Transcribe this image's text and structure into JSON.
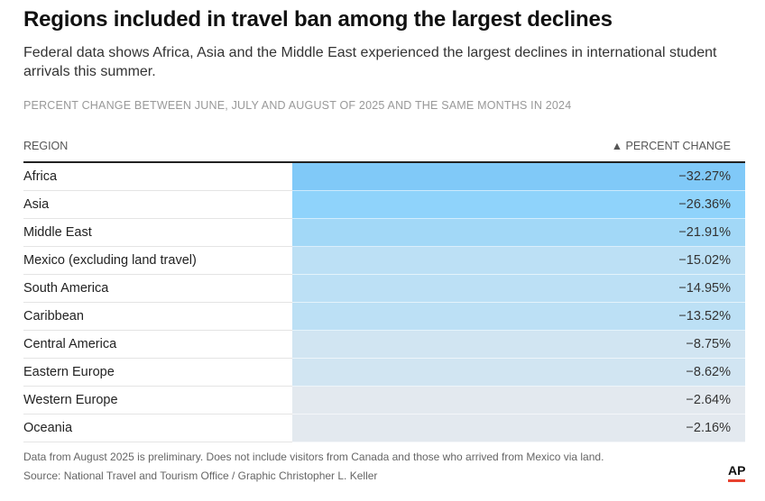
{
  "title": "Regions included in travel ban among the largest declines",
  "subtitle": "Federal data shows Africa, Asia and the Middle East experienced the largest declines in international student arrivals this summer.",
  "kicker": "PERCENT CHANGE BETWEEN JUNE, JULY AND AUGUST OF 2025 AND THE SAME MONTHS IN 2024",
  "note": "Data from August 2025 is preliminary. Does not include visitors from Canada and those who arrived from Mexico via land.",
  "source": "Source: National Travel and Tourism Office / Graphic Christopher L. Keller",
  "logo": "AP",
  "chart_data": {
    "type": "table",
    "columns": [
      "REGION",
      "▲ PERCENT CHANGE"
    ],
    "rows": [
      {
        "region": "Africa",
        "value": "−32.27%",
        "num": -32.27,
        "color": "#80c9f8"
      },
      {
        "region": "Asia",
        "value": "−26.36%",
        "num": -26.36,
        "color": "#8fd3fb"
      },
      {
        "region": "Middle East",
        "value": "−21.91%",
        "num": -21.91,
        "color": "#a2d8f7"
      },
      {
        "region": "Mexico (excluding land travel)",
        "value": "−15.02%",
        "num": -15.02,
        "color": "#bce0f5"
      },
      {
        "region": "South America",
        "value": "−14.95%",
        "num": -14.95,
        "color": "#bce0f5"
      },
      {
        "region": "Caribbean",
        "value": "−13.52%",
        "num": -13.52,
        "color": "#bce0f5"
      },
      {
        "region": "Central America",
        "value": "−8.75%",
        "num": -8.75,
        "color": "#d1e5f2"
      },
      {
        "region": "Eastern Europe",
        "value": "−8.62%",
        "num": -8.62,
        "color": "#d1e5f2"
      },
      {
        "region": "Western Europe",
        "value": "−2.64%",
        "num": -2.64,
        "color": "#e3e9ef"
      },
      {
        "region": "Oceania",
        "value": "−2.16%",
        "num": -2.16,
        "color": "#e3e9ef"
      }
    ]
  }
}
